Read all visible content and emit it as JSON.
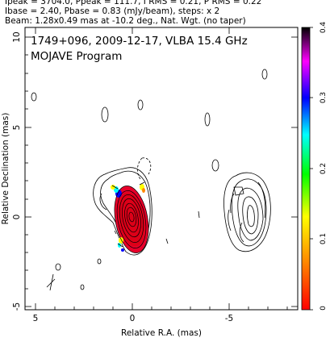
{
  "header": {
    "line1": "Ipeak = 3704.0, Ppeak = 111.7, I RMS = 0.21, P RMS = 0.22",
    "line2": "Ibase = 2.40, Pbase = 0.83 (mJy/beam), steps: x 2",
    "line3": "Beam: 1.28x0.49 mas at -10.2 deg., Nat. Wgt. (no taper)"
  },
  "plot": {
    "title_line1": "1749+096, 2009-12-17, VLBA 15.4 GHz",
    "title_line2": "MOJAVE Program",
    "xlabel": "Relative R.A. (mas)",
    "ylabel": "Relative Declination (mas)",
    "x_ticks": [
      "5",
      "0",
      "-5"
    ],
    "y_ticks": [
      "10",
      "5",
      "0",
      "-5"
    ],
    "colorbar_ticks": [
      "0.4",
      "0.3",
      "0.2",
      "0.1",
      "0"
    ]
  },
  "colors": {
    "colorbar_stops": [
      "#ff0000",
      "#ff8800",
      "#ffff00",
      "#00ff00",
      "#00ffff",
      "#0000ff",
      "#ff00ff",
      "#000000"
    ]
  }
}
